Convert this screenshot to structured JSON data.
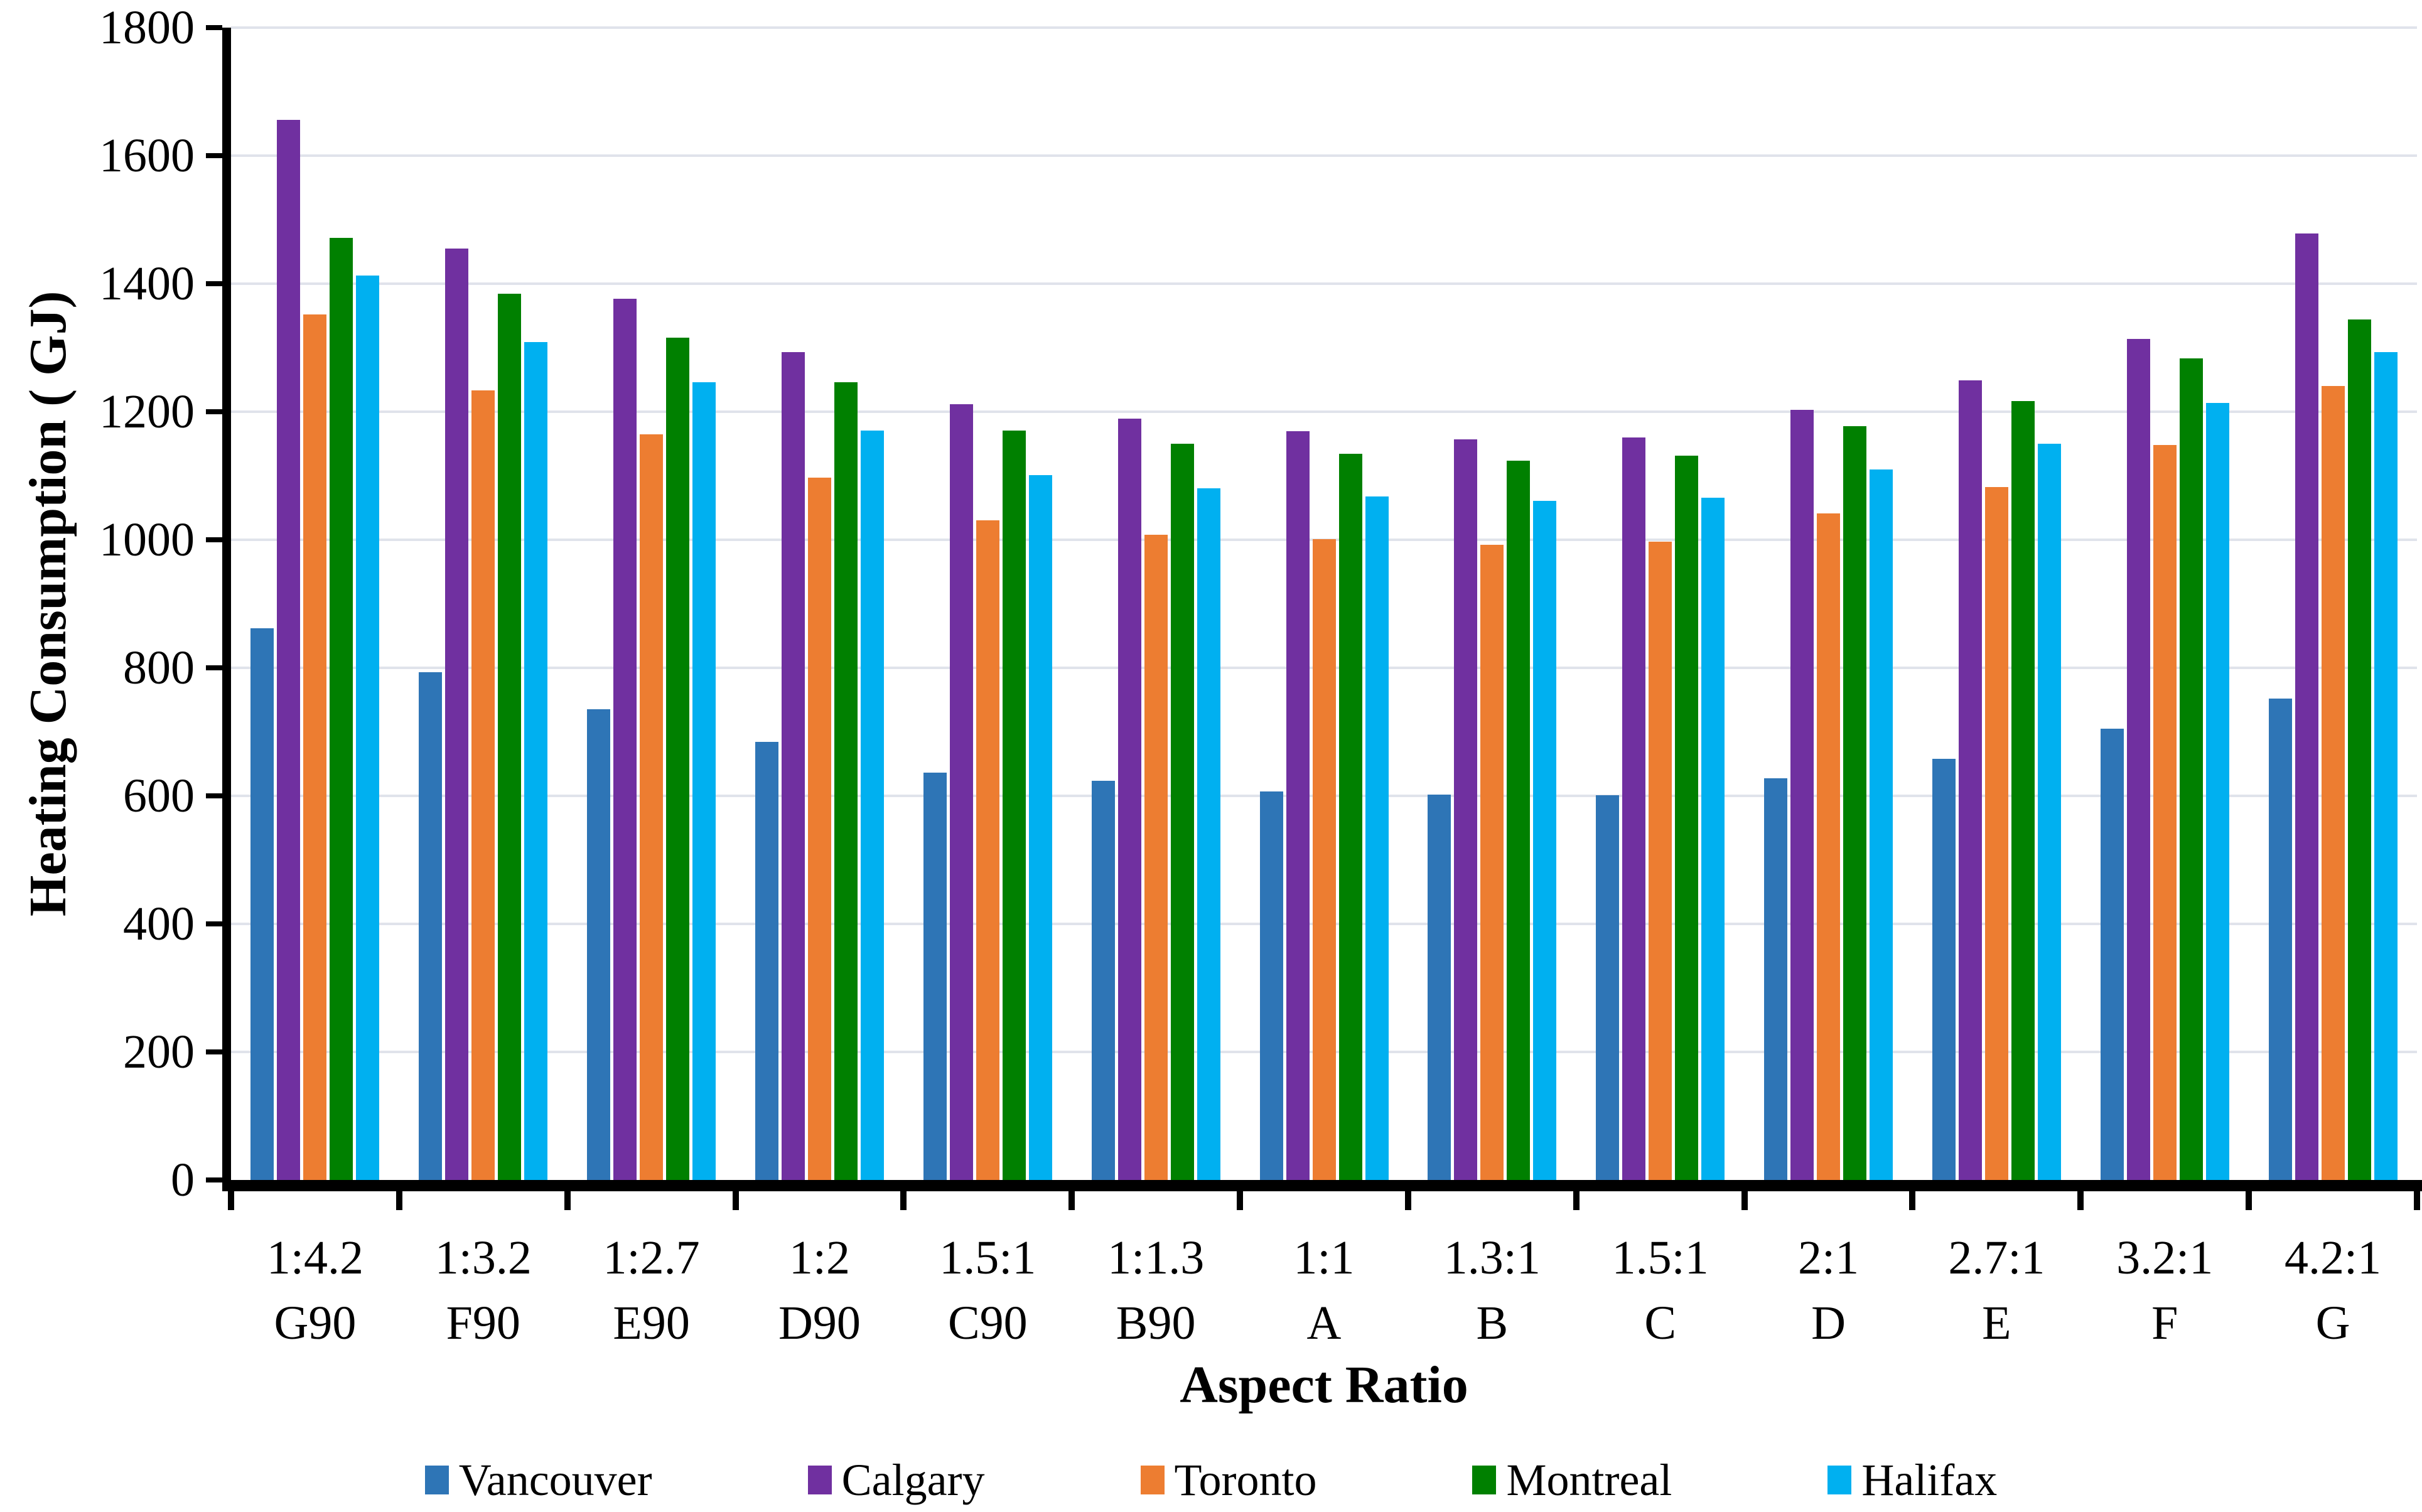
{
  "page": {
    "background": "#FFFFFF"
  },
  "axes": {
    "x_title": "Aspect Ratio",
    "y_title": "Heating Consumption ( GJ)"
  },
  "chart_data": {
    "type": "bar",
    "title": "",
    "xlabel": "Aspect Ratio",
    "ylabel": "Heating Consumption ( GJ)",
    "ylim": [
      0,
      1800
    ],
    "ytick_step": 200,
    "grid": "horizontal-gridlines",
    "gridline_color": "#E0E3EB",
    "legend_position": "bottom",
    "categories": [
      "1:4.2 G90",
      "1:3.2 F90",
      "1:2.7 E90",
      "1:2 D90",
      "1.5:1 C90",
      "1:1.3 B90",
      "1:1 A",
      "1.3:1 B",
      "1.5:1 C",
      "2:1 D",
      "2.7:1 E",
      "3.2:1 F",
      "4.2:1 G"
    ],
    "categories_line1": [
      "1:4.2",
      "1:3.2",
      "1:2.7",
      "1:2",
      "1.5:1",
      "1:1.3",
      "1:1",
      "1.3:1",
      "1.5:1",
      "2:1",
      "2.7:1",
      "3.2:1",
      "4.2:1"
    ],
    "categories_line2": [
      "G90",
      "F90",
      "E90",
      "D90",
      "C90",
      "B90",
      "A",
      "B",
      "C",
      "D",
      "E",
      "F",
      "G"
    ],
    "series": [
      {
        "name": "Vancouver",
        "color": "#2E75B6",
        "values": [
          862,
          793,
          735,
          684,
          636,
          624,
          607,
          602,
          601,
          627,
          658,
          705,
          752
        ]
      },
      {
        "name": "Calgary",
        "color": "#7030A0",
        "values": [
          1656,
          1455,
          1376,
          1293,
          1212,
          1189,
          1170,
          1157,
          1160,
          1203,
          1249,
          1314,
          1478
        ]
      },
      {
        "name": "Toronto",
        "color": "#ED7D31",
        "values": [
          1352,
          1233,
          1165,
          1097,
          1030,
          1008,
          1001,
          992,
          997,
          1041,
          1082,
          1148,
          1240
        ]
      },
      {
        "name": "Montreal",
        "color": "#008000",
        "values": [
          1472,
          1384,
          1316,
          1246,
          1171,
          1150,
          1134,
          1124,
          1131,
          1177,
          1217,
          1283,
          1344
        ]
      },
      {
        "name": "Halifax",
        "color": "#00B0F0",
        "values": [
          1413,
          1309,
          1246,
          1171,
          1101,
          1080,
          1068,
          1061,
          1066,
          1110,
          1150,
          1214,
          1293
        ]
      }
    ]
  }
}
